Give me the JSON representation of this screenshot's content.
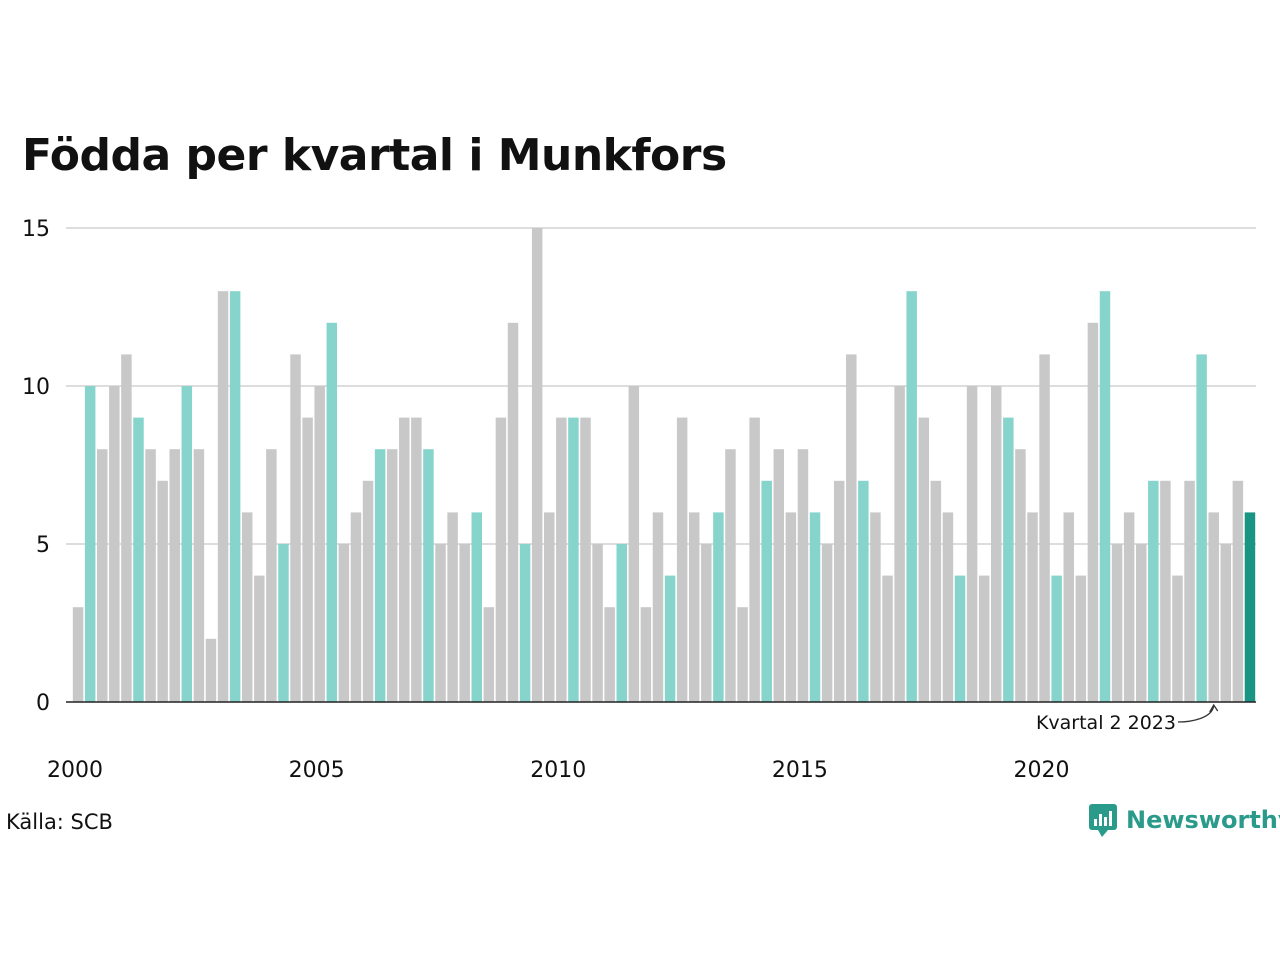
{
  "title": "Födda per kvartal i Munkfors",
  "source": "Källa: SCB",
  "brand": "Newsworthy",
  "colors": {
    "bar_default": "#c8c8c8",
    "bar_highlight": "#86d4cc",
    "bar_latest": "#1a9583",
    "grid": "#dddddd",
    "axis": "#222222",
    "text": "#111111",
    "brand": "#2a9a8a"
  },
  "chart_data": {
    "type": "bar",
    "x_ticks": [
      "2000",
      "2005",
      "2010",
      "2015",
      "2020"
    ],
    "y_ticks": [
      0,
      5,
      10,
      15
    ],
    "ylim": [
      0,
      15
    ],
    "annotation": "Kvartal 2 2023",
    "annotation_index": 94,
    "highlight_quarter": 2,
    "values": [
      3,
      10,
      8,
      10,
      11,
      9,
      8,
      7,
      8,
      10,
      8,
      2,
      13,
      13,
      6,
      4,
      8,
      5,
      11,
      9,
      10,
      12,
      5,
      6,
      7,
      8,
      8,
      9,
      9,
      8,
      5,
      6,
      5,
      6,
      3,
      9,
      12,
      5,
      15,
      6,
      9,
      9,
      9,
      5,
      3,
      5,
      10,
      3,
      6,
      4,
      9,
      6,
      5,
      6,
      8,
      3,
      9,
      7,
      8,
      6,
      8,
      6,
      5,
      7,
      11,
      7,
      6,
      4,
      10,
      13,
      9,
      7,
      6,
      4,
      10,
      4,
      10,
      9,
      8,
      6,
      11,
      4,
      6,
      4,
      12,
      13,
      5,
      6,
      5,
      7,
      7,
      4,
      7,
      11,
      6,
      5,
      7,
      6
    ]
  }
}
